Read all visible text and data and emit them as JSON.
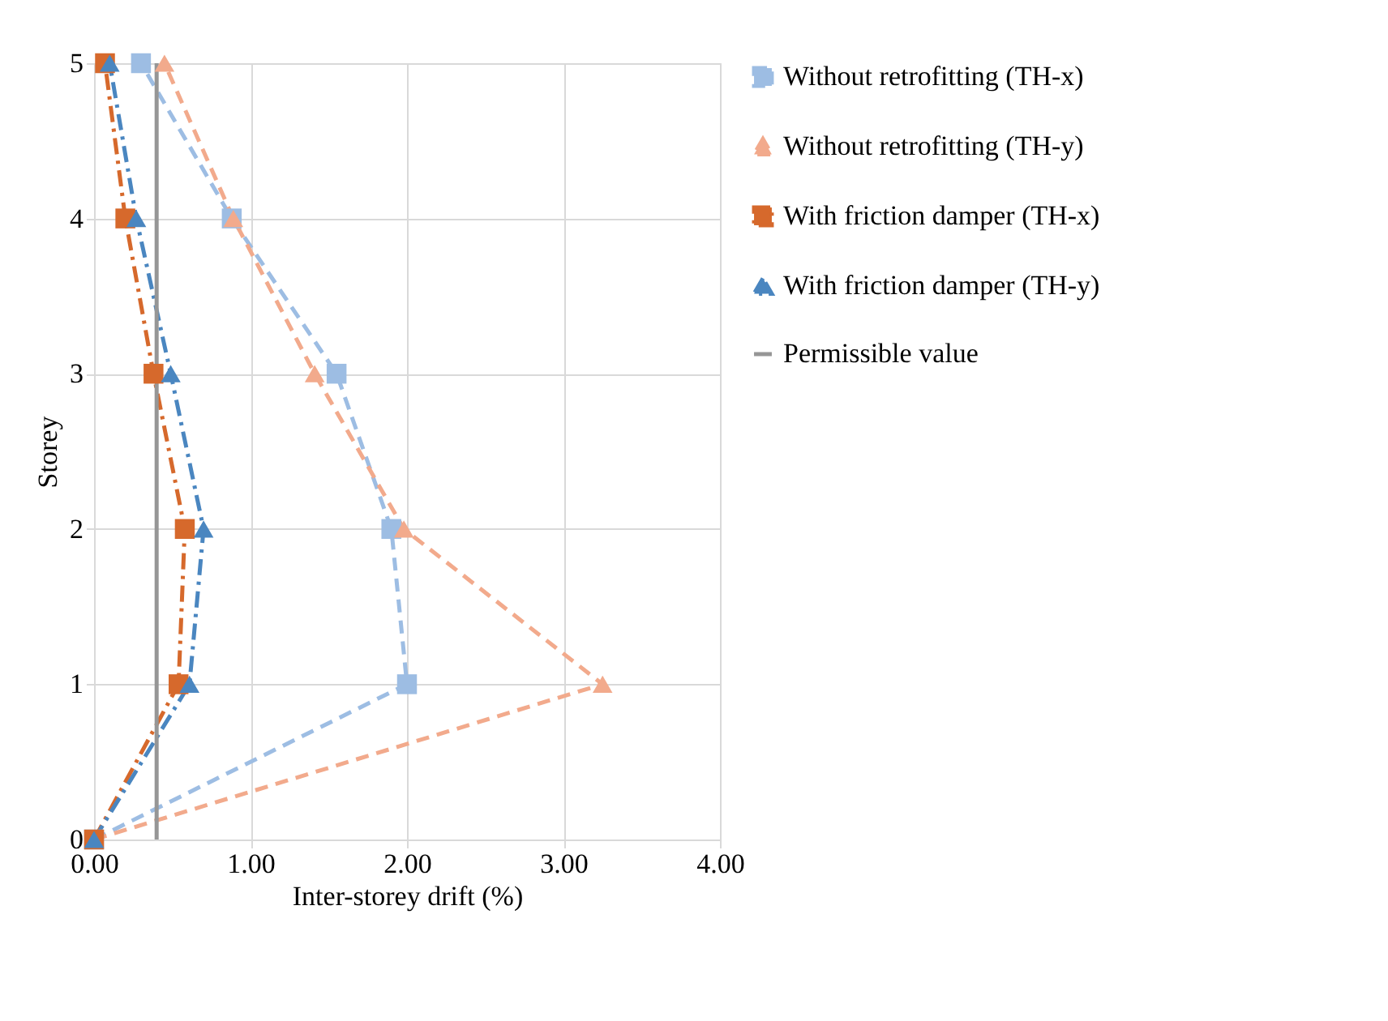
{
  "chart_data": {
    "type": "line",
    "xlabel": "Inter-storey drift (%)",
    "ylabel": "Storey",
    "xlim": [
      0,
      4
    ],
    "xticks": [
      {
        "value": 0,
        "label": "0.00"
      },
      {
        "value": 1,
        "label": "1.00"
      },
      {
        "value": 2,
        "label": "2.00"
      },
      {
        "value": 3,
        "label": "3.00"
      },
      {
        "value": 4,
        "label": "4.00"
      }
    ],
    "ylim": [
      0,
      5
    ],
    "yticks": [
      0,
      1,
      2,
      3,
      4,
      5
    ],
    "grid": true,
    "legend": "right",
    "series": [
      {
        "name": "Without retrofitting (TH-x)",
        "color": "#9dbde3",
        "marker": "square",
        "line_style": "dashed",
        "x": [
          0,
          2.0,
          1.9,
          1.55,
          0.88,
          0.3
        ],
        "values": [
          0,
          1,
          2,
          3,
          4,
          5
        ]
      },
      {
        "name": "Without retrofitting (TH-y)",
        "color": "#f2aa8c",
        "marker": "triangle",
        "line_style": "dashed",
        "x": [
          0,
          3.25,
          1.98,
          1.41,
          0.89,
          0.45
        ],
        "values": [
          0,
          1,
          2,
          3,
          4,
          5
        ]
      },
      {
        "name": "With friction damper (TH-x)",
        "color": "#d6692c",
        "marker": "square",
        "line_style": "dashdot",
        "x": [
          0,
          0.54,
          0.58,
          0.38,
          0.2,
          0.07
        ],
        "values": [
          0,
          1,
          2,
          3,
          4,
          5
        ]
      },
      {
        "name": "With friction damper (TH-y)",
        "color": "#4a86c0",
        "marker": "triangle",
        "line_style": "dashdot",
        "x": [
          0,
          0.61,
          0.7,
          0.49,
          0.27,
          0.1
        ],
        "values": [
          0,
          1,
          2,
          3,
          4,
          5
        ]
      },
      {
        "name": "Permissible value",
        "color": "#969696",
        "marker": "none",
        "line_style": "solid",
        "x": [
          0.4,
          0.4
        ],
        "values": [
          0,
          5
        ]
      }
    ]
  }
}
